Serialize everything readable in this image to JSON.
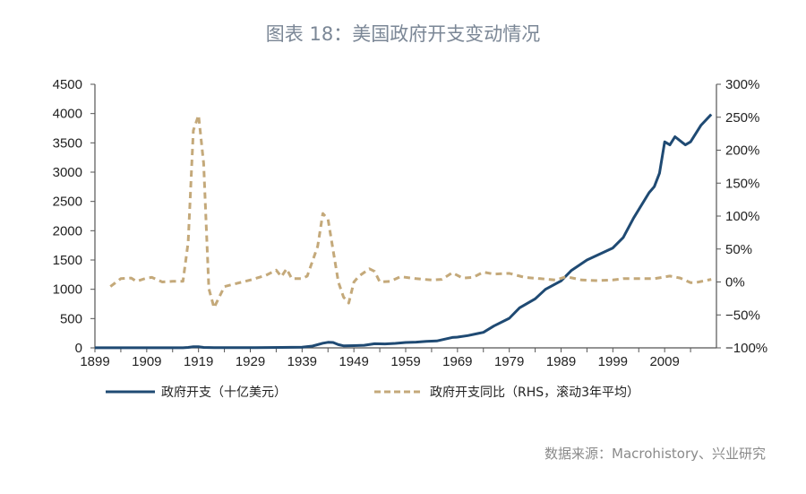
{
  "title": "图表 18：美国政府开支变动情况",
  "source": "数据来源：Macrohistory、兴业研究",
  "chart_data": {
    "type": "line",
    "title": "图表 18：美国政府开支变动情况",
    "x_range": [
      1899,
      2019
    ],
    "x_ticks": [
      "1899",
      "1909",
      "1919",
      "1929",
      "1939",
      "1949",
      "1959",
      "1969",
      "1979",
      "1989",
      "1999",
      "2009"
    ],
    "y_left": {
      "range": [
        0,
        4500
      ],
      "ticks": [
        "0",
        "500",
        "1000",
        "1500",
        "2000",
        "2500",
        "3000",
        "3500",
        "4000",
        "4500"
      ]
    },
    "y_right": {
      "range": [
        -100,
        300
      ],
      "unit": "%",
      "ticks": [
        "-100%",
        "-50%",
        "0%",
        "50%",
        "100%",
        "150%",
        "200%",
        "250%",
        "300%"
      ]
    },
    "grid": false,
    "legend_placement": "bottom",
    "series": [
      {
        "name": "政府开支（十亿美元）",
        "axis": "left",
        "style": "solid",
        "color": "#1f4a73",
        "points": [
          [
            1899,
            1
          ],
          [
            1916,
            2
          ],
          [
            1917,
            8
          ],
          [
            1918,
            18
          ],
          [
            1919,
            19
          ],
          [
            1920,
            7
          ],
          [
            1922,
            4
          ],
          [
            1930,
            5
          ],
          [
            1935,
            8
          ],
          [
            1939,
            10
          ],
          [
            1941,
            30
          ],
          [
            1943,
            80
          ],
          [
            1944,
            95
          ],
          [
            1945,
            92
          ],
          [
            1946,
            55
          ],
          [
            1947,
            35
          ],
          [
            1949,
            39
          ],
          [
            1951,
            45
          ],
          [
            1953,
            70
          ],
          [
            1955,
            68
          ],
          [
            1957,
            76
          ],
          [
            1959,
            92
          ],
          [
            1961,
            98
          ],
          [
            1963,
            111
          ],
          [
            1965,
            118
          ],
          [
            1967,
            157
          ],
          [
            1968,
            178
          ],
          [
            1969,
            184
          ],
          [
            1971,
            210
          ],
          [
            1973,
            246
          ],
          [
            1974,
            265
          ],
          [
            1976,
            372
          ],
          [
            1979,
            505
          ],
          [
            1981,
            684
          ],
          [
            1984,
            837
          ],
          [
            1986,
            1000
          ],
          [
            1989,
            1143
          ],
          [
            1991,
            1322
          ],
          [
            1994,
            1500
          ],
          [
            1999,
            1705
          ],
          [
            2001,
            1884
          ],
          [
            2003,
            2216
          ],
          [
            2006,
            2650
          ],
          [
            2007,
            2752
          ],
          [
            2008,
            2981
          ],
          [
            2009,
            3517
          ],
          [
            2010,
            3466
          ],
          [
            2011,
            3604
          ],
          [
            2013,
            3466
          ],
          [
            2014,
            3517
          ],
          [
            2016,
            3798
          ],
          [
            2018,
            3986
          ]
        ]
      },
      {
        "name": "政府开支同比（RHS，滚动3年平均）",
        "axis": "right",
        "style": "dashed",
        "color": "#c4a97a",
        "points": [
          [
            1902,
            -7
          ],
          [
            1904,
            5
          ],
          [
            1906,
            6
          ],
          [
            1907,
            1
          ],
          [
            1909,
            6
          ],
          [
            1910,
            7
          ],
          [
            1912,
            0
          ],
          [
            1914,
            1
          ],
          [
            1916,
            1
          ],
          [
            1917,
            60
          ],
          [
            1918,
            230
          ],
          [
            1919,
            253
          ],
          [
            1920,
            180
          ],
          [
            1921,
            -10
          ],
          [
            1922,
            -39
          ],
          [
            1924,
            -7
          ],
          [
            1926,
            -3
          ],
          [
            1929,
            3
          ],
          [
            1932,
            10
          ],
          [
            1934,
            18
          ],
          [
            1935,
            8
          ],
          [
            1936,
            20
          ],
          [
            1937,
            5
          ],
          [
            1939,
            5
          ],
          [
            1940,
            9
          ],
          [
            1942,
            54
          ],
          [
            1943,
            104
          ],
          [
            1944,
            95
          ],
          [
            1946,
            0
          ],
          [
            1947,
            -23
          ],
          [
            1948,
            -32
          ],
          [
            1949,
            0
          ],
          [
            1950,
            9
          ],
          [
            1952,
            20
          ],
          [
            1953,
            16
          ],
          [
            1954,
            0
          ],
          [
            1956,
            1
          ],
          [
            1958,
            8
          ],
          [
            1961,
            5
          ],
          [
            1964,
            3
          ],
          [
            1966,
            4
          ],
          [
            1968,
            14
          ],
          [
            1970,
            6
          ],
          [
            1972,
            7
          ],
          [
            1974,
            15
          ],
          [
            1976,
            12
          ],
          [
            1979,
            13
          ],
          [
            1982,
            7
          ],
          [
            1985,
            5
          ],
          [
            1988,
            3
          ],
          [
            1990,
            8
          ],
          [
            1993,
            3
          ],
          [
            1996,
            2
          ],
          [
            1999,
            3
          ],
          [
            2001,
            5
          ],
          [
            2004,
            5
          ],
          [
            2007,
            5
          ],
          [
            2010,
            9
          ],
          [
            2012,
            6
          ],
          [
            2014,
            -1
          ],
          [
            2015,
            -1
          ],
          [
            2018,
            4
          ]
        ]
      }
    ]
  }
}
